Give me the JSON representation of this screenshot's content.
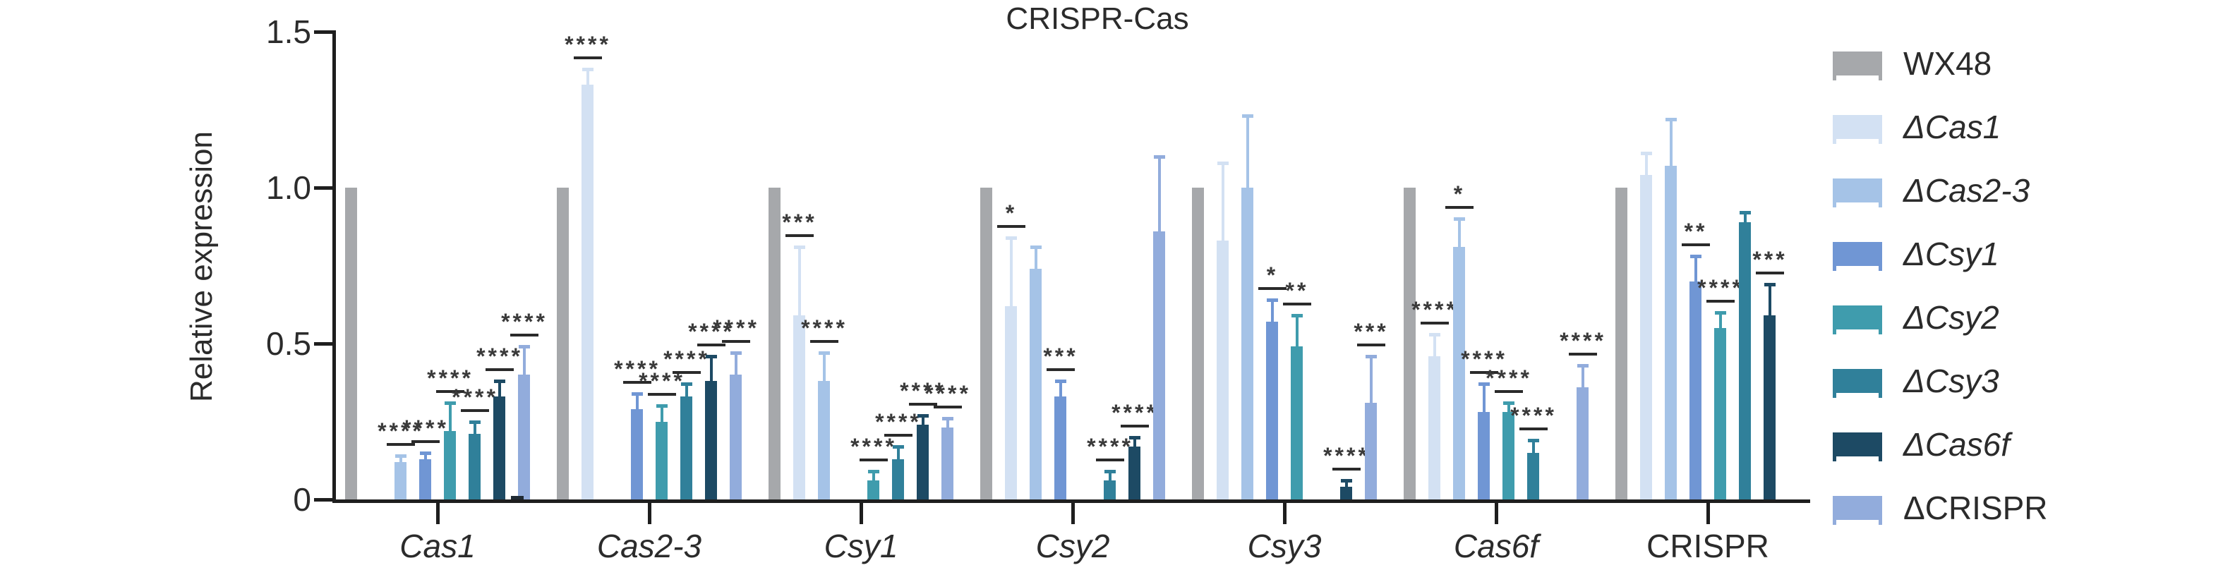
{
  "title": "CRISPR-Cas",
  "y_axis": {
    "label": "Relative expression",
    "tick_labels": [
      "0",
      "0.5",
      "1.0",
      "1.5"
    ],
    "tick_values": [
      0,
      0.5,
      1.0,
      1.5
    ]
  },
  "chart_data": {
    "type": "bar",
    "title": "CRISPR-Cas",
    "xlabel": "",
    "ylabel": "Relative expression",
    "ylim": [
      0,
      1.5
    ],
    "yticks": [
      0,
      0.5,
      1.0,
      1.5
    ],
    "grid": false,
    "legend_position": "right",
    "categories": [
      "Cas1",
      "Cas2-3",
      "Csy1",
      "Csy2",
      "Csy3",
      "Cas6f",
      "CRISPR"
    ],
    "categories_italic": [
      true,
      true,
      true,
      true,
      true,
      true,
      false
    ],
    "series": [
      {
        "name": "WX48",
        "color": "#a6a8ab",
        "italic": false,
        "values": [
          1.0,
          1.0,
          1.0,
          1.0,
          1.0,
          1.0,
          1.0
        ],
        "error_tops": [
          null,
          null,
          null,
          null,
          null,
          null,
          null
        ],
        "significance": [
          null,
          null,
          null,
          null,
          null,
          null,
          null
        ]
      },
      {
        "name": "ΔCas1",
        "color": "#d3e1f3",
        "italic": true,
        "values": [
          null,
          1.33,
          0.59,
          0.62,
          0.83,
          0.46,
          1.04
        ],
        "error_tops": [
          null,
          1.38,
          0.81,
          0.84,
          1.08,
          0.53,
          1.11
        ],
        "significance": [
          null,
          "****",
          "***",
          "*",
          null,
          "****",
          null
        ]
      },
      {
        "name": "ΔCas2-3",
        "color": "#a5c3e7",
        "italic": true,
        "values": [
          0.12,
          null,
          0.38,
          0.74,
          1.0,
          0.81,
          1.07
        ],
        "error_tops": [
          0.14,
          null,
          0.47,
          0.81,
          1.23,
          0.9,
          1.22
        ],
        "significance": [
          "****",
          null,
          "****",
          null,
          null,
          "*",
          null
        ]
      },
      {
        "name": "ΔCsy1",
        "color": "#7096d4",
        "italic": true,
        "values": [
          0.13,
          0.29,
          null,
          0.33,
          0.57,
          0.28,
          0.7
        ],
        "error_tops": [
          0.15,
          0.34,
          null,
          0.38,
          0.64,
          0.37,
          0.78
        ],
        "significance": [
          "****",
          "****",
          null,
          "***",
          "*",
          "****",
          "**"
        ]
      },
      {
        "name": "ΔCsy2",
        "color": "#3f9cad",
        "italic": true,
        "values": [
          0.22,
          0.25,
          0.06,
          null,
          0.49,
          0.28,
          0.55
        ],
        "error_tops": [
          0.31,
          0.3,
          0.09,
          null,
          0.59,
          0.31,
          0.6
        ],
        "significance": [
          "****",
          "****",
          "****",
          null,
          "**",
          "****",
          "****"
        ]
      },
      {
        "name": "ΔCsy3",
        "color": "#30809a",
        "italic": true,
        "values": [
          0.21,
          0.33,
          0.13,
          0.06,
          null,
          0.15,
          0.89
        ],
        "error_tops": [
          0.25,
          0.37,
          0.17,
          0.09,
          null,
          0.19,
          0.92
        ],
        "significance": [
          "****",
          "****",
          "****",
          "****",
          null,
          "****",
          null
        ]
      },
      {
        "name": "ΔCas6f",
        "color": "#1d4a64",
        "italic": true,
        "values": [
          0.33,
          0.38,
          0.24,
          0.17,
          0.04,
          null,
          0.59
        ],
        "error_tops": [
          0.38,
          0.46,
          0.27,
          0.2,
          0.06,
          null,
          0.69
        ],
        "significance": [
          "****",
          "****",
          "****",
          "****",
          "****",
          null,
          "***"
        ]
      },
      {
        "name": "ΔCRISPR",
        "color": "#92acdc",
        "italic": false,
        "values": [
          0.4,
          0.4,
          0.23,
          0.86,
          0.31,
          0.36,
          null
        ],
        "error_tops": [
          0.49,
          0.47,
          0.26,
          1.1,
          0.46,
          0.43,
          null
        ],
        "significance": [
          "****",
          "****",
          "****",
          null,
          "***",
          "****",
          null
        ]
      }
    ],
    "baseline_stub": {
      "category": "Cas1",
      "series": "ΔCas1",
      "value": 0.01,
      "color": "#1f2a33",
      "note": "tiny near-zero dark bar drawn at the left base of the ΔCRISPR bar in the Cas1 group"
    }
  }
}
